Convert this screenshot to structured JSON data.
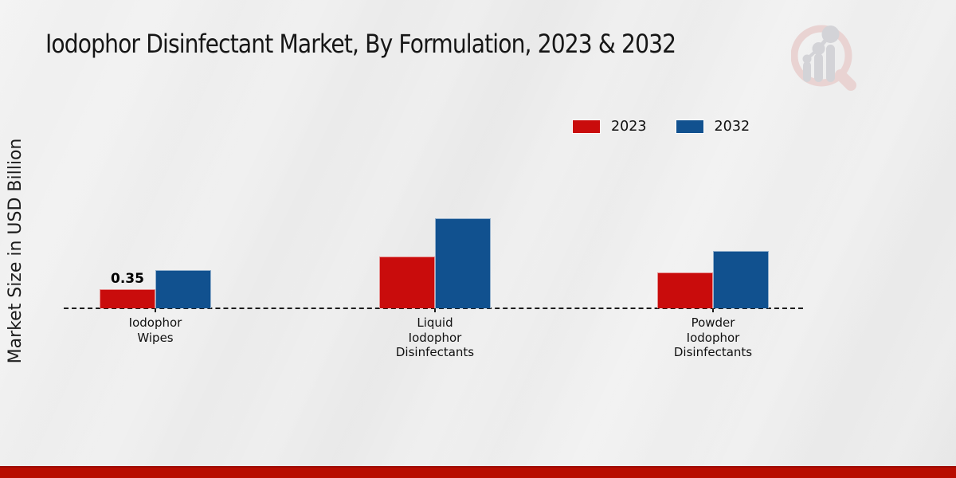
{
  "title": "Iodophor Disinfectant Market, By Formulation, 2023 & 2032",
  "y_axis_label": "Market Size in USD Billion",
  "logo": {
    "name": "magnifier-bar-chart-watermark",
    "ring_color": "#e8d1d0",
    "bars_color": "#d2d2d6"
  },
  "footer": {
    "accent_bar_color": "#b80c00"
  },
  "chart_data": {
    "type": "bar",
    "title": "Iodophor Disinfectant Market, By Formulation, 2023 & 2032",
    "xlabel": "",
    "ylabel": "Market Size in USD Billion",
    "categories": [
      "Iodophor Wipes",
      "Liquid Iodophor Disinfectants",
      "Powder Iodophor Disinfectants"
    ],
    "category_label_lines": [
      [
        "Iodophor",
        "Wipes"
      ],
      [
        "Liquid",
        "Iodophor",
        "Disinfectants"
      ],
      [
        "Powder",
        "Iodophor",
        "Disinfectants"
      ]
    ],
    "series": [
      {
        "name": "2023",
        "color": "#c90c0c",
        "values": [
          0.35,
          0.95,
          0.65
        ]
      },
      {
        "name": "2032",
        "color": "#11518f",
        "values": [
          0.7,
          1.65,
          1.05
        ]
      }
    ],
    "data_labels": [
      {
        "series": "2023",
        "category_index": 0,
        "text": "0.35"
      }
    ],
    "ylim": [
      0,
      2
    ],
    "grid": false,
    "baseline_style": "dashed",
    "legend_position": "top-right"
  }
}
